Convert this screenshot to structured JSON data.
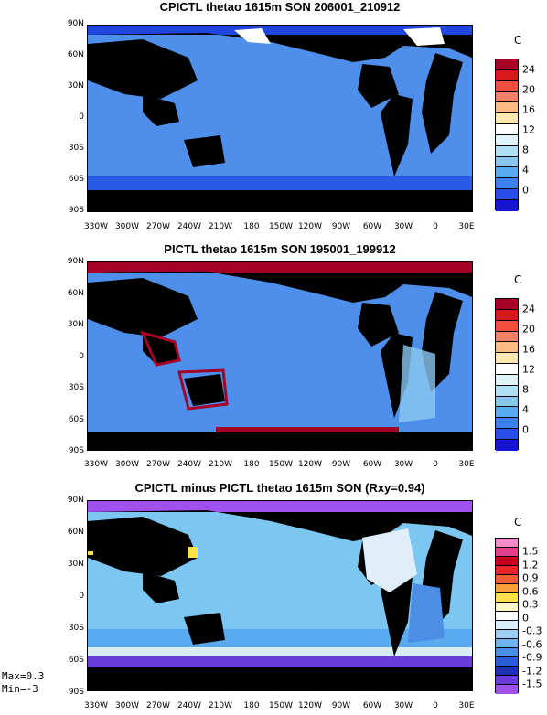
{
  "panels": [
    {
      "title": "CPICTL thetao 1615m SON 206001_210912",
      "unit": "C",
      "colorbar": {
        "labels": [
          "24",
          "20",
          "16",
          "12",
          "8",
          "4",
          "0"
        ],
        "colors": [
          "#a50026",
          "#d7191c",
          "#f0503c",
          "#f4826a",
          "#fdbb84",
          "#fee8b0",
          "#ffffff",
          "#e0f3f8",
          "#b0e0f4",
          "#88c8f0",
          "#5aaaf0",
          "#3b82f0",
          "#2850e8",
          "#1414d2"
        ]
      },
      "map_fill": "#4d8fea"
    },
    {
      "title": "PICTL thetao 1615m SON 195001_199912",
      "unit": "C",
      "colorbar": {
        "labels": [
          "24",
          "20",
          "16",
          "12",
          "8",
          "4",
          "0"
        ],
        "colors": [
          "#a50026",
          "#d7191c",
          "#f0503c",
          "#f4826a",
          "#fdbb84",
          "#fee8b0",
          "#ffffff",
          "#e0f3f8",
          "#b0e0f4",
          "#88c8f0",
          "#5aaaf0",
          "#3b82f0",
          "#2850e8",
          "#1414d2"
        ]
      },
      "map_fill": "#4d8fea"
    },
    {
      "title": "CPICTL minus PICTL thetao 1615m SON (Rxy=0.94)",
      "unit": "C",
      "colorbar": {
        "labels": [
          "1.5",
          "1.2",
          "0.9",
          "0.6",
          "0.3",
          "0",
          "-0.3",
          "-0.6",
          "-0.9",
          "-1.2",
          "-1.5"
        ],
        "colors": [
          "#f78cc8",
          "#e0408c",
          "#c8001e",
          "#e8262a",
          "#f46036",
          "#f8a040",
          "#fde04a",
          "#fef7c8",
          "#ffffff",
          "#d8ecfa",
          "#9ccdf5",
          "#6eb2f0",
          "#4a8ee6",
          "#2a5cd6",
          "#1e32b4",
          "#6a3cdc",
          "#a050ec"
        ]
      },
      "map_fill": "#7cc6f2",
      "stats": {
        "max": "Max=0.3",
        "min": "Min=-3"
      }
    }
  ],
  "axes": {
    "lat_labels": [
      "90N",
      "60N",
      "30N",
      "0",
      "30S",
      "60S",
      "90S"
    ],
    "lon_labels": [
      "330W",
      "300W",
      "270W",
      "240W",
      "210W",
      "180",
      "150W",
      "120W",
      "90W",
      "60W",
      "30W",
      "0",
      "30E"
    ]
  }
}
